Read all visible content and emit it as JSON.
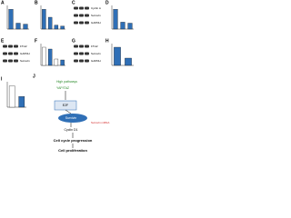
{
  "panels": [
    {
      "letter": "A",
      "kind": "bars",
      "ylim": [
        0,
        1.2
      ],
      "bars": [
        {
          "value": 1.0,
          "color": "#2f6fb6"
        },
        {
          "value": 0.3,
          "color": "#2f6fb6"
        },
        {
          "value": 0.25,
          "color": "#2f6fb6"
        }
      ]
    },
    {
      "letter": "B",
      "kind": "bars",
      "ylim": [
        0,
        1.2
      ],
      "bars": [
        {
          "value": 1.0,
          "color": "#2f6fb6"
        },
        {
          "value": 0.6,
          "color": "#2f6fb6"
        },
        {
          "value": 0.2,
          "color": "#2f6fb6"
        },
        {
          "value": 0.15,
          "color": "#2f6fb6"
        }
      ]
    },
    {
      "letter": "C",
      "kind": "blot",
      "rows": [
        "Cyclin A",
        "Survivin",
        "GAPDH"
      ]
    },
    {
      "letter": "D",
      "kind": "bars",
      "ylim": [
        0,
        1.2
      ],
      "bars": [
        {
          "value": 1.0,
          "color": "#2f6fb6"
        },
        {
          "value": 0.35,
          "color": "#2f6fb6"
        },
        {
          "value": 0.3,
          "color": "#2f6fb6"
        }
      ]
    },
    {
      "letter": "E",
      "kind": "blot",
      "rows": [
        "FTH2",
        "GAPDH",
        "Survivin"
      ]
    },
    {
      "letter": "F",
      "kind": "bars",
      "ylim": [
        0,
        1.2
      ],
      "bars": [
        {
          "value": 1.0,
          "color": "#ffffff"
        },
        {
          "value": 0.9,
          "color": "#2f6fb6"
        },
        {
          "value": 0.35,
          "color": "#ffffff"
        },
        {
          "value": 0.3,
          "color": "#2f6fb6"
        }
      ]
    },
    {
      "letter": "G",
      "kind": "blot",
      "rows": [
        "FTH2",
        "Survivin",
        "GAPDH"
      ]
    },
    {
      "letter": "H",
      "kind": "bars",
      "ylim": [
        0,
        1.2
      ],
      "bars": [
        {
          "value": 1.0,
          "color": "#2f6fb6"
        },
        {
          "value": 0.4,
          "color": "#2f6fb6"
        }
      ]
    },
    {
      "letter": "I",
      "kind": "bars",
      "ylim": [
        0,
        1.2
      ],
      "bars": [
        {
          "value": 1.0,
          "color": "#ffffff"
        },
        {
          "value": 0.5,
          "color": "#2f6fb6"
        }
      ]
    }
  ],
  "diagram": {
    "letter": "J",
    "nodes": [
      "High pathways",
      "YAP/TAZ",
      "E2F",
      "Survivin",
      "Cyclin D1",
      "Cell cycle progression",
      "Cell proliferation"
    ],
    "note": "Survivin mRNA"
  }
}
